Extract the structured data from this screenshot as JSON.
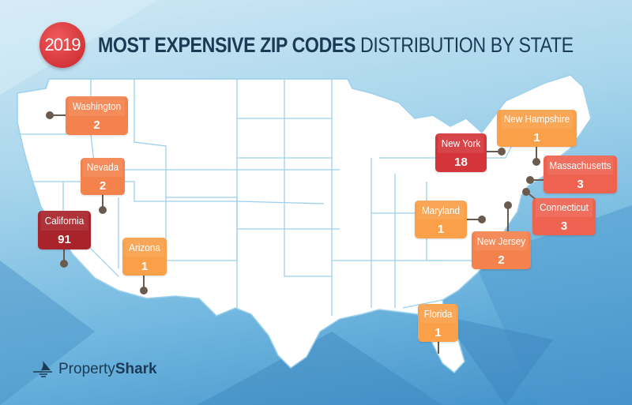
{
  "header": {
    "year": "2019",
    "title_bold": "MOST EXPENSIVE ZIP CODES",
    "title_light": "DISTRIBUTION BY STATE"
  },
  "brand": {
    "name_light": "Property",
    "name_bold": "Shark"
  },
  "colors": {
    "c1": "#f9a048",
    "c2": "#f3824c",
    "c3": "#ee6250",
    "c18": "#d4353a",
    "c91": "#a8232a"
  },
  "states": [
    {
      "name": "Washington",
      "count": "2"
    },
    {
      "name": "Nevada",
      "count": "2"
    },
    {
      "name": "California",
      "count": "91"
    },
    {
      "name": "Arizona",
      "count": "1"
    },
    {
      "name": "New York",
      "count": "18"
    },
    {
      "name": "New Hampshire",
      "count": "1"
    },
    {
      "name": "Massachusetts",
      "count": "3"
    },
    {
      "name": "Connecticut",
      "count": "3"
    },
    {
      "name": "Maryland",
      "count": "1"
    },
    {
      "name": "New Jersey",
      "count": "2"
    },
    {
      "name": "Florida",
      "count": "1"
    }
  ]
}
